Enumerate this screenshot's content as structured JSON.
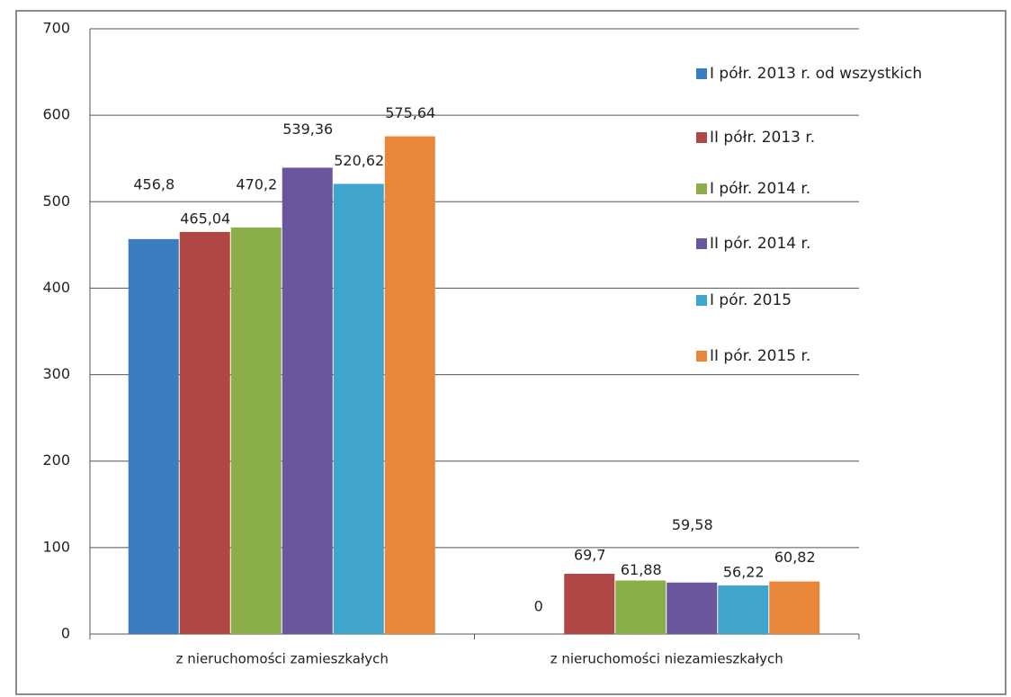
{
  "chart_data": {
    "type": "bar",
    "categories": [
      "z nieruchomości zamieszkałych",
      "z nieruchomości niezamieszkałych"
    ],
    "series": [
      {
        "name": "I półr. 2013 r. od wszystkich",
        "color": "#3b7dc0",
        "values": [
          456.8,
          0
        ],
        "value_labels": [
          "456,8",
          "0"
        ]
      },
      {
        "name": "II półr. 2013 r.",
        "color": "#b04745",
        "values": [
          465.04,
          69.7
        ],
        "value_labels": [
          "465,04",
          "69,7"
        ]
      },
      {
        "name": "I półr. 2014 r.",
        "color": "#8aae4a",
        "values": [
          470.2,
          61.88
        ],
        "value_labels": [
          "470,2",
          "61,88"
        ]
      },
      {
        "name": "II pór. 2014 r.",
        "color": "#6a569c",
        "values": [
          539.36,
          59.58
        ],
        "value_labels": [
          "539,36",
          "59,58"
        ]
      },
      {
        "name": "I pór. 2015",
        "color": "#3fa5cc",
        "values": [
          520.62,
          56.22
        ],
        "value_labels": [
          "520,62",
          "56,22"
        ]
      },
      {
        "name": "II pór. 2015 r.",
        "color": "#e8873a",
        "values": [
          575.64,
          60.82
        ],
        "value_labels": [
          "575,64",
          "60,82"
        ]
      }
    ],
    "ylim": [
      0,
      700
    ],
    "yticks": [
      0,
      100,
      200,
      300,
      400,
      500,
      600,
      700
    ],
    "grid": true,
    "legend": "right"
  }
}
